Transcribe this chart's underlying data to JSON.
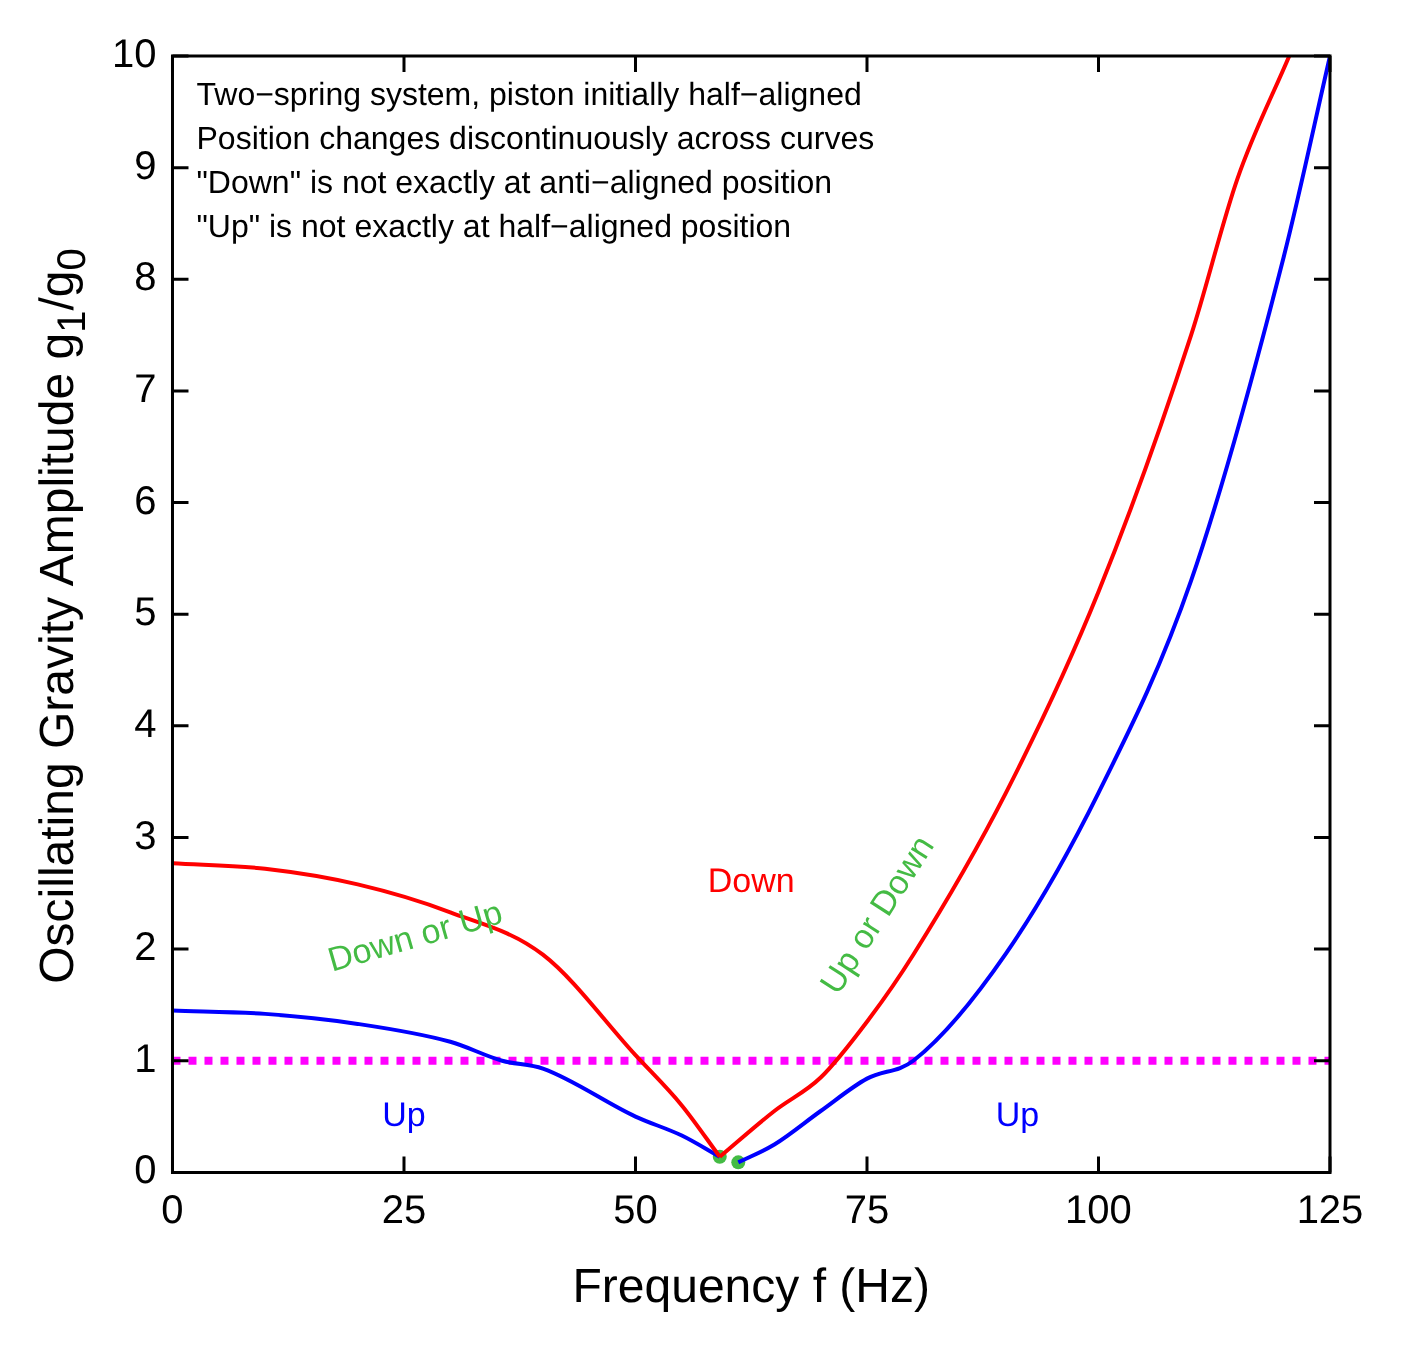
{
  "chart_data": {
    "type": "line",
    "xlabel": "Frequency f (Hz)",
    "ylabel": "Oscillating Gravity Amplitude g$_{1}$/g$_{0}$",
    "xlim": [
      0,
      125
    ],
    "ylim": [
      0,
      10
    ],
    "xticks": [
      0,
      25,
      50,
      75,
      100,
      125
    ],
    "yticks": [
      0,
      1,
      2,
      3,
      4,
      5,
      6,
      7,
      8,
      9,
      10
    ],
    "grid": false,
    "legend": false,
    "marker": "none",
    "series": [
      {
        "color": "#ff0000",
        "x": [
          0,
          10,
          20,
          30,
          40,
          50,
          55,
          59.1
        ],
        "values": [
          2.77,
          2.72,
          2.58,
          2.33,
          1.95,
          1.05,
          0.6,
          0.14
        ]
      },
      {
        "color": "#0000ff",
        "x": [
          0,
          10,
          20,
          30,
          35.6,
          40,
          50,
          55,
          59.1
        ],
        "values": [
          1.45,
          1.42,
          1.33,
          1.17,
          1.0,
          0.93,
          0.5,
          0.33,
          0.14
        ]
      },
      {
        "color": "#ff0000",
        "x": [
          59.1,
          65,
          70,
          75,
          80,
          90,
          100,
          110,
          115,
          120.6
        ],
        "values": [
          0.14,
          0.55,
          0.85,
          1.35,
          1.95,
          3.4,
          5.2,
          7.5,
          8.9,
          10
        ]
      },
      {
        "color": "#0000ff",
        "x": [
          61.1,
          65,
          70,
          75,
          80,
          90,
          100,
          110,
          120,
          125
        ],
        "values": [
          0.09,
          0.25,
          0.55,
          0.84,
          1.0,
          1.96,
          3.4,
          5.3,
          8.2,
          10
        ]
      },
      {
        "type": "scatter",
        "marker": "circle",
        "color": "#44bb44",
        "x": [
          59.1,
          61.1
        ],
        "values": [
          0.14,
          0.09
        ]
      }
    ],
    "ref_lines": [
      {
        "axis": "y",
        "value": 1,
        "color": "#ff00ff",
        "line_style": "dotted"
      }
    ],
    "annotations": [
      "Two−spring system, piston initially half−aligned",
      "Position changes discontinuously across curves",
      "\"Down\" is not exactly at anti−aligned position",
      "\"Up\" is not exactly at half−aligned position",
      "Down",
      "Down or Up",
      "Up or Down",
      "Up",
      "Up"
    ]
  }
}
